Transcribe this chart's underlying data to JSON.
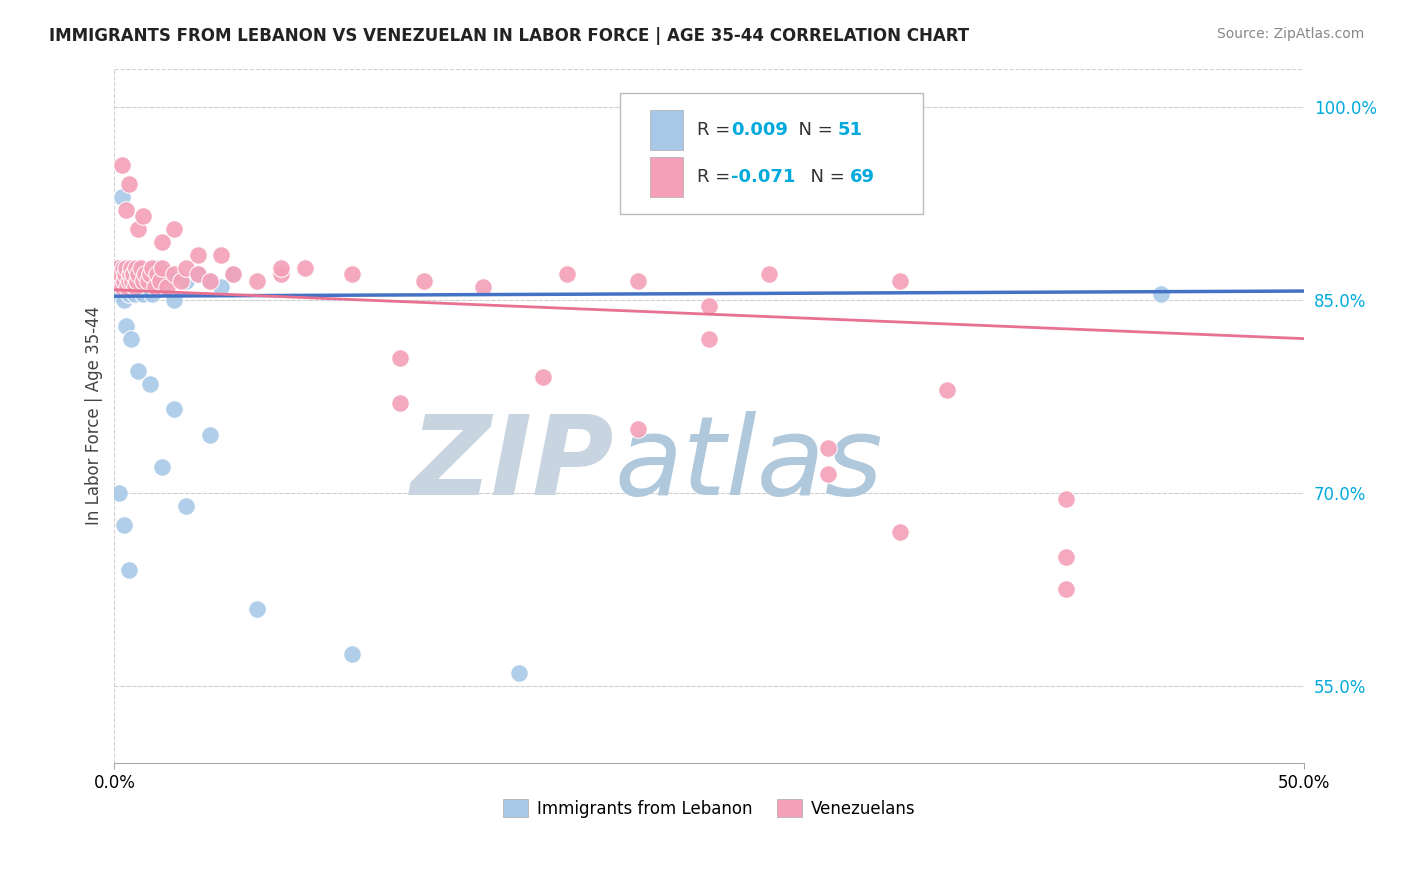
{
  "title": "IMMIGRANTS FROM LEBANON VS VENEZUELAN IN LABOR FORCE | AGE 35-44 CORRELATION CHART",
  "source": "Source: ZipAtlas.com",
  "ylabel": "In Labor Force | Age 35-44",
  "y_ticks": [
    55.0,
    70.0,
    85.0,
    100.0
  ],
  "xlim": [
    0.0,
    50.0
  ],
  "ylim": [
    49.0,
    103.0
  ],
  "watermark_zip": "ZIP",
  "watermark_atlas": "atlas",
  "lebanon_color": "#A8C8E8",
  "venezuela_color": "#F4A0B8",
  "lebanon_line_color": "#4472C4",
  "venezuela_line_color": "#E87090",
  "bg_color": "#FFFFFF",
  "grid_color": "#CCCCCC",
  "watermark_color_zip": "#D0D8EA",
  "watermark_color_atlas": "#B8CCDE",
  "tick_color": "#00AADD",
  "lebanon_scatter_x": [
    0.1,
    0.15,
    0.2,
    0.25,
    0.3,
    0.35,
    0.4,
    0.45,
    0.5,
    0.55,
    0.6,
    0.65,
    0.7,
    0.75,
    0.8,
    0.85,
    0.9,
    0.95,
    1.0,
    1.1,
    1.2,
    1.3,
    1.4,
    1.5,
    1.6,
    1.7,
    1.8,
    2.0,
    2.2,
    2.5,
    3.0,
    3.5,
    4.0,
    4.5,
    5.0,
    0.3,
    0.5,
    0.7,
    1.0,
    1.5,
    2.5,
    4.0,
    0.2,
    0.4,
    0.6,
    2.0,
    3.0,
    6.0,
    10.0,
    17.0,
    44.0
  ],
  "lebanon_scatter_y": [
    85.5,
    86.0,
    87.0,
    87.5,
    86.5,
    86.0,
    85.0,
    86.5,
    87.0,
    87.5,
    85.5,
    86.0,
    86.5,
    87.0,
    86.5,
    85.5,
    86.0,
    86.5,
    87.5,
    86.0,
    85.5,
    86.5,
    86.0,
    87.0,
    85.5,
    86.0,
    87.5,
    86.0,
    87.0,
    85.0,
    86.5,
    87.0,
    86.5,
    86.0,
    87.0,
    93.0,
    83.0,
    82.0,
    79.5,
    78.5,
    76.5,
    74.5,
    70.0,
    67.5,
    64.0,
    72.0,
    69.0,
    61.0,
    57.5,
    56.0,
    85.5
  ],
  "venezuela_scatter_x": [
    0.1,
    0.15,
    0.2,
    0.25,
    0.3,
    0.35,
    0.4,
    0.45,
    0.5,
    0.55,
    0.6,
    0.65,
    0.7,
    0.75,
    0.8,
    0.85,
    0.9,
    0.95,
    1.0,
    1.1,
    1.2,
    1.3,
    1.4,
    1.5,
    1.6,
    1.7,
    1.8,
    1.9,
    2.0,
    2.2,
    2.5,
    2.8,
    3.0,
    3.5,
    4.0,
    5.0,
    6.0,
    7.0,
    8.0,
    0.5,
    1.0,
    2.0,
    3.5,
    0.3,
    0.6,
    1.2,
    2.5,
    4.5,
    7.0,
    10.0,
    13.0,
    15.5,
    19.0,
    22.0,
    27.5,
    33.0,
    12.0,
    18.0,
    12.0,
    22.0,
    30.0,
    30.0,
    40.0,
    33.0,
    40.0,
    40.0,
    25.0,
    25.0,
    35.0
  ],
  "venezuela_scatter_y": [
    87.0,
    87.5,
    86.5,
    87.0,
    86.0,
    87.5,
    86.5,
    87.0,
    87.5,
    86.0,
    86.5,
    87.0,
    87.5,
    86.5,
    87.0,
    86.0,
    87.5,
    86.5,
    87.0,
    87.5,
    86.5,
    87.0,
    86.5,
    87.0,
    87.5,
    86.0,
    87.0,
    86.5,
    87.5,
    86.0,
    87.0,
    86.5,
    87.5,
    87.0,
    86.5,
    87.0,
    86.5,
    87.0,
    87.5,
    92.0,
    90.5,
    89.5,
    88.5,
    95.5,
    94.0,
    91.5,
    90.5,
    88.5,
    87.5,
    87.0,
    86.5,
    86.0,
    87.0,
    86.5,
    87.0,
    86.5,
    80.5,
    79.0,
    77.0,
    75.0,
    73.5,
    71.5,
    69.5,
    67.0,
    65.0,
    62.5,
    84.5,
    82.0,
    78.0
  ]
}
